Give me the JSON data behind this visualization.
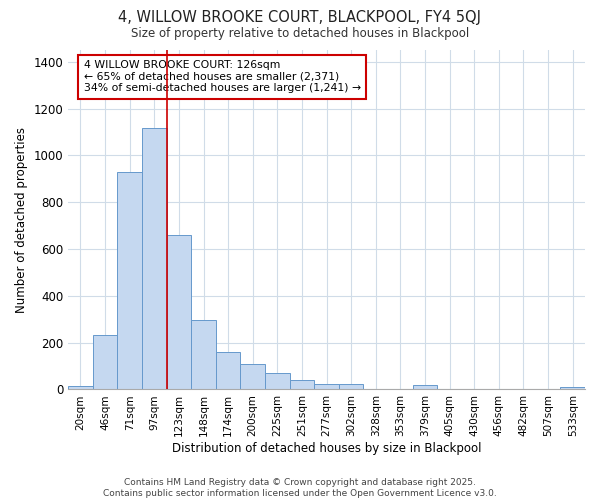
{
  "title_line1": "4, WILLOW BROOKE COURT, BLACKPOOL, FY4 5QJ",
  "title_line2": "Size of property relative to detached houses in Blackpool",
  "xlabel": "Distribution of detached houses by size in Blackpool",
  "ylabel": "Number of detached properties",
  "categories": [
    "20sqm",
    "46sqm",
    "71sqm",
    "97sqm",
    "123sqm",
    "148sqm",
    "174sqm",
    "200sqm",
    "225sqm",
    "251sqm",
    "277sqm",
    "302sqm",
    "328sqm",
    "353sqm",
    "379sqm",
    "405sqm",
    "430sqm",
    "456sqm",
    "482sqm",
    "507sqm",
    "533sqm"
  ],
  "values": [
    15,
    232,
    930,
    1115,
    658,
    297,
    158,
    108,
    70,
    40,
    25,
    23,
    0,
    0,
    18,
    0,
    0,
    0,
    0,
    0,
    10
  ],
  "bar_color": "#c5d8f0",
  "bar_edge_color": "#6699cc",
  "grid_color": "#d0dce8",
  "background_color": "#ffffff",
  "redline_x": 3.5,
  "annotation_text": "4 WILLOW BROOKE COURT: 126sqm\n← 65% of detached houses are smaller (2,371)\n34% of semi-detached houses are larger (1,241) →",
  "annotation_box_color": "#ffffff",
  "annotation_box_edge": "#cc0000",
  "ylim": [
    0,
    1450
  ],
  "yticks": [
    0,
    200,
    400,
    600,
    800,
    1000,
    1200,
    1400
  ],
  "footnote": "Contains HM Land Registry data © Crown copyright and database right 2025.\nContains public sector information licensed under the Open Government Licence v3.0."
}
